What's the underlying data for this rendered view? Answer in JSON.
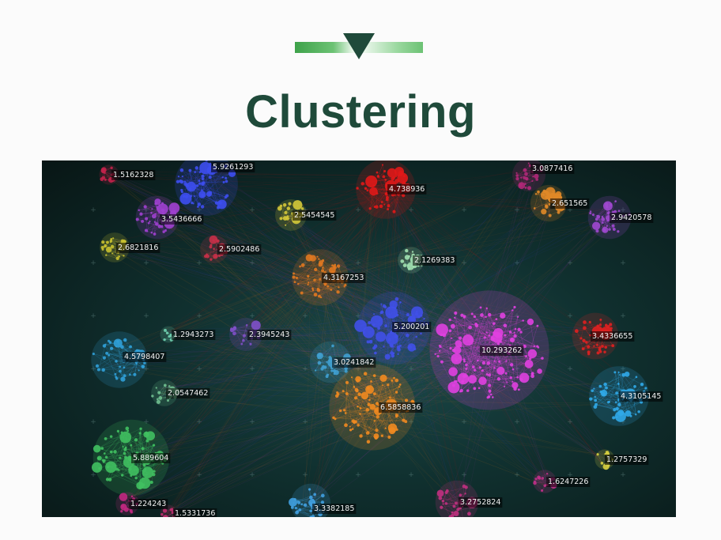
{
  "title": "Clustering",
  "accent_color": "#1f4a3a",
  "clusters": [
    {
      "label": "1.5162328",
      "color": "#c0224a"
    },
    {
      "label": "5.9261293",
      "color": "#3d4ef0"
    },
    {
      "label": "3.5436666",
      "color": "#a040d0"
    },
    {
      "label": "2.6821816",
      "color": "#c8c030"
    },
    {
      "label": "2.5902486",
      "color": "#c83048"
    },
    {
      "label": "2.5454545",
      "color": "#d4c838"
    },
    {
      "label": "4.738936",
      "color": "#e01818"
    },
    {
      "label": "3.0877416",
      "color": "#b02878"
    },
    {
      "label": "2.651565",
      "color": "#e08828"
    },
    {
      "label": "2.9420578",
      "color": "#a048d0"
    },
    {
      "label": "4.3167253",
      "color": "#e07820"
    },
    {
      "label": "2.1269383",
      "color": "#a0e0b0"
    },
    {
      "label": "1.2943273",
      "color": "#70d0b0"
    },
    {
      "label": "2.3945243",
      "color": "#8050c8"
    },
    {
      "label": "5.200201",
      "color": "#4050e8"
    },
    {
      "label": "10.293262",
      "color": "#e040e0"
    },
    {
      "label": "3.4336655",
      "color": "#e02020"
    },
    {
      "label": "4.5798407",
      "color": "#30a0d8"
    },
    {
      "label": "3.0241842",
      "color": "#40a0d0"
    },
    {
      "label": "2.0547462",
      "color": "#70c090"
    },
    {
      "label": "6.5858836",
      "color": "#f08a20"
    },
    {
      "label": "4.3105145",
      "color": "#30a8e8"
    },
    {
      "label": "5.889604",
      "color": "#40c060"
    },
    {
      "label": "1.2757329",
      "color": "#d8d040"
    },
    {
      "label": "1.6247226",
      "color": "#c03088"
    },
    {
      "label": "1.224243",
      "color": "#c02880"
    },
    {
      "label": "1.5331736",
      "color": "#c03070"
    },
    {
      "label": "3.3382185",
      "color": "#40a0e0"
    },
    {
      "label": "3.2752824",
      "color": "#c03080"
    }
  ]
}
